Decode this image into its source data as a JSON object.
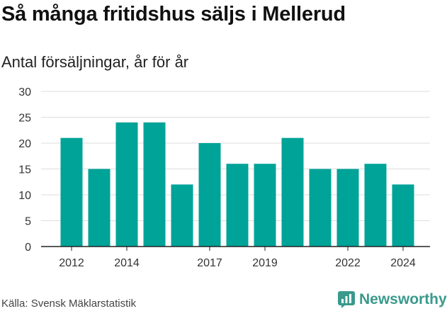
{
  "title": "Så många fritidshus säljs i Mellerud",
  "subtitle": "Antal försäljningar, år för år",
  "source": "Källa: Svensk Mäklarstatistik",
  "brand": "Newsworthy",
  "colors": {
    "bar": "#00a398",
    "grid": "#dddddd",
    "axis": "#222222",
    "brand": "#3a9a8c"
  },
  "chart_data": {
    "type": "bar",
    "x": [
      2012,
      2013,
      2014,
      2015,
      2016,
      2017,
      2018,
      2019,
      2020,
      2021,
      2022,
      2023,
      2024
    ],
    "values": [
      21,
      15,
      24,
      24,
      12,
      20,
      16,
      16,
      21,
      15,
      15,
      16,
      12
    ],
    "x_tick_labels": [
      "2012",
      "2014",
      "2017",
      "2019",
      "2022",
      "2024"
    ],
    "y_ticks": [
      0,
      5,
      10,
      15,
      20,
      25,
      30
    ],
    "ylim": [
      0,
      30
    ],
    "grid": true
  }
}
